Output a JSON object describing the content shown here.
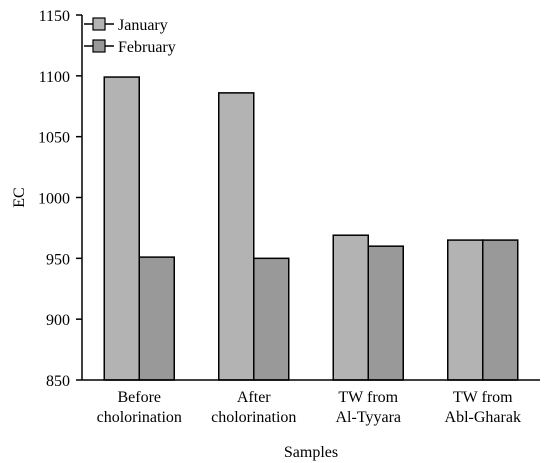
{
  "chart_data": {
    "type": "bar",
    "xlabel": "Samples",
    "ylabel": "EC",
    "ylim": [
      850,
      1150
    ],
    "yticks": [
      850,
      900,
      950,
      1000,
      1050,
      1100,
      1150
    ],
    "grid": false,
    "legend_position": "top-left",
    "categories": [
      [
        "Before",
        "cholorination"
      ],
      [
        "After",
        "cholorination"
      ],
      [
        "TW from",
        "Al-Tyyara"
      ],
      [
        "TW from",
        "Abl-Gharak"
      ]
    ],
    "series": [
      {
        "name": "January",
        "color": "#b3b3b3",
        "values": [
          1099,
          1086,
          969,
          965
        ]
      },
      {
        "name": "February",
        "color": "#999999",
        "values": [
          951,
          950,
          960,
          965
        ]
      }
    ]
  }
}
